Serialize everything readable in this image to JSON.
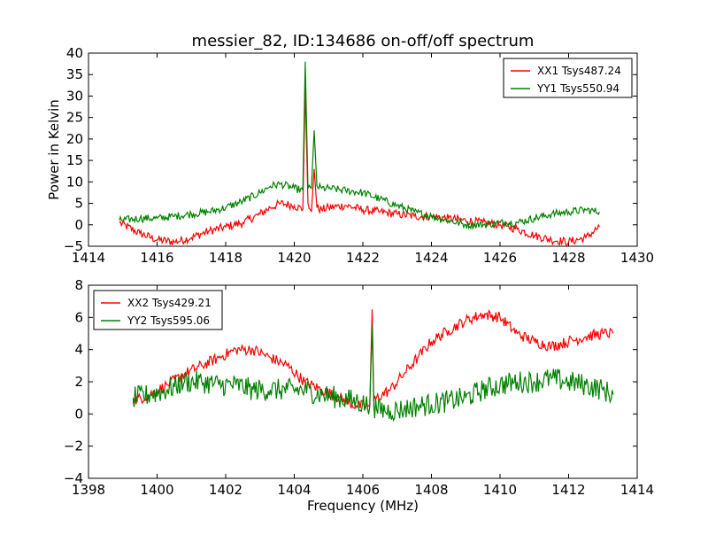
{
  "chart_data": [
    {
      "type": "line",
      "title": "messier_82, ID:134686 on-off/off spectrum",
      "xlabel": "",
      "ylabel": "Power in Kelvin",
      "xlim": [
        1414,
        1430
      ],
      "ylim": [
        -5,
        40
      ],
      "xticks": [
        "1414",
        "1416",
        "1418",
        "1420",
        "1422",
        "1424",
        "1426",
        "1428",
        "1430"
      ],
      "yticks": [
        "−5",
        "0",
        "5",
        "10",
        "15",
        "20",
        "25",
        "30",
        "35",
        "40"
      ],
      "legend_position": "top-right",
      "series": [
        {
          "name": "XX1 Tsys487.24",
          "color": "#ff0000",
          "x": [
            1414.9,
            1415.5,
            1416.0,
            1416.5,
            1417.0,
            1417.5,
            1418.0,
            1418.5,
            1419.0,
            1419.3,
            1419.6,
            1420.0,
            1420.25,
            1420.32,
            1420.4,
            1420.5,
            1420.58,
            1420.66,
            1420.8,
            1421.0,
            1421.5,
            1422.0,
            1422.5,
            1423.0,
            1423.5,
            1424.0,
            1424.5,
            1425.0,
            1425.5,
            1426.0,
            1426.5,
            1427.0,
            1427.5,
            1428.0,
            1428.5,
            1428.9
          ],
          "values": [
            0.5,
            -2.0,
            -3.5,
            -4.0,
            -3.0,
            -1.5,
            -0.5,
            0.5,
            2.5,
            4.0,
            5.0,
            4.5,
            3.5,
            32.0,
            5.0,
            3.0,
            13.0,
            4.0,
            3.5,
            4.0,
            4.5,
            3.5,
            3.0,
            2.5,
            2.0,
            2.0,
            1.5,
            1.0,
            0.5,
            0.0,
            -1.0,
            -2.5,
            -3.5,
            -4.0,
            -3.0,
            -0.5
          ]
        },
        {
          "name": "YY1 Tsys550.94",
          "color": "#008000",
          "x": [
            1414.9,
            1415.5,
            1416.0,
            1416.5,
            1417.0,
            1417.5,
            1418.0,
            1418.5,
            1419.0,
            1419.3,
            1419.6,
            1420.0,
            1420.25,
            1420.32,
            1420.4,
            1420.5,
            1420.58,
            1420.66,
            1420.8,
            1421.0,
            1421.5,
            1422.0,
            1422.5,
            1423.0,
            1423.5,
            1424.0,
            1424.5,
            1425.0,
            1425.5,
            1426.0,
            1426.5,
            1427.0,
            1427.5,
            1428.0,
            1428.5,
            1428.9
          ],
          "values": [
            1.0,
            1.5,
            1.5,
            2.0,
            2.5,
            3.0,
            4.0,
            5.5,
            7.5,
            9.0,
            9.5,
            8.5,
            8.0,
            38.0,
            8.5,
            8.5,
            22.0,
            9.0,
            8.5,
            8.5,
            8.0,
            7.5,
            6.0,
            4.5,
            3.0,
            2.0,
            1.0,
            0.0,
            0.0,
            0.5,
            0.5,
            1.5,
            2.5,
            3.0,
            3.5,
            3.0
          ]
        }
      ]
    },
    {
      "type": "line",
      "title": "",
      "xlabel": "Frequency (MHz)",
      "ylabel": "",
      "xlim": [
        1398,
        1414
      ],
      "ylim": [
        -4,
        8
      ],
      "xticks": [
        "1398",
        "1400",
        "1402",
        "1404",
        "1406",
        "1408",
        "1410",
        "1412",
        "1414"
      ],
      "yticks": [
        "−4",
        "−2",
        "0",
        "2",
        "4",
        "6",
        "8"
      ],
      "legend_position": "top-left",
      "series": [
        {
          "name": "XX2 Tsys429.21",
          "color": "#ff0000",
          "x": [
            1399.3,
            1399.8,
            1400.3,
            1400.8,
            1401.3,
            1401.8,
            1402.3,
            1402.8,
            1403.3,
            1403.8,
            1404.3,
            1404.8,
            1405.3,
            1405.8,
            1406.2,
            1406.27,
            1406.32,
            1406.4,
            1406.8,
            1407.2,
            1407.6,
            1408.0,
            1408.5,
            1409.0,
            1409.5,
            1410.0,
            1410.5,
            1411.0,
            1411.5,
            1412.0,
            1412.5,
            1413.0,
            1413.3
          ],
          "values": [
            0.8,
            1.2,
            1.8,
            2.5,
            3.0,
            3.5,
            4.0,
            4.0,
            3.5,
            3.0,
            2.0,
            1.5,
            1.0,
            0.5,
            0.5,
            6.5,
            0.8,
            1.0,
            1.5,
            2.5,
            3.5,
            4.5,
            5.2,
            5.8,
            6.2,
            6.0,
            5.0,
            4.5,
            4.2,
            4.5,
            4.8,
            5.0,
            5.0
          ]
        },
        {
          "name": "YY2 Tsys595.06",
          "color": "#008000",
          "x": [
            1399.3,
            1399.8,
            1400.3,
            1400.8,
            1401.3,
            1401.8,
            1402.3,
            1402.8,
            1403.3,
            1403.8,
            1404.3,
            1404.8,
            1405.3,
            1405.8,
            1406.2,
            1406.27,
            1406.32,
            1406.4,
            1406.8,
            1407.2,
            1407.6,
            1408.0,
            1408.5,
            1409.0,
            1409.5,
            1410.0,
            1410.5,
            1411.0,
            1411.5,
            1412.0,
            1412.5,
            1413.0,
            1413.3
          ],
          "values": [
            1.0,
            1.2,
            1.5,
            2.0,
            2.0,
            1.8,
            1.8,
            1.5,
            1.5,
            1.5,
            1.5,
            1.2,
            1.0,
            0.8,
            0.5,
            5.5,
            0.5,
            0.3,
            0.2,
            0.3,
            0.5,
            0.6,
            0.8,
            1.0,
            1.5,
            1.8,
            2.0,
            2.0,
            2.2,
            2.0,
            1.8,
            1.5,
            1.2
          ]
        }
      ]
    }
  ]
}
